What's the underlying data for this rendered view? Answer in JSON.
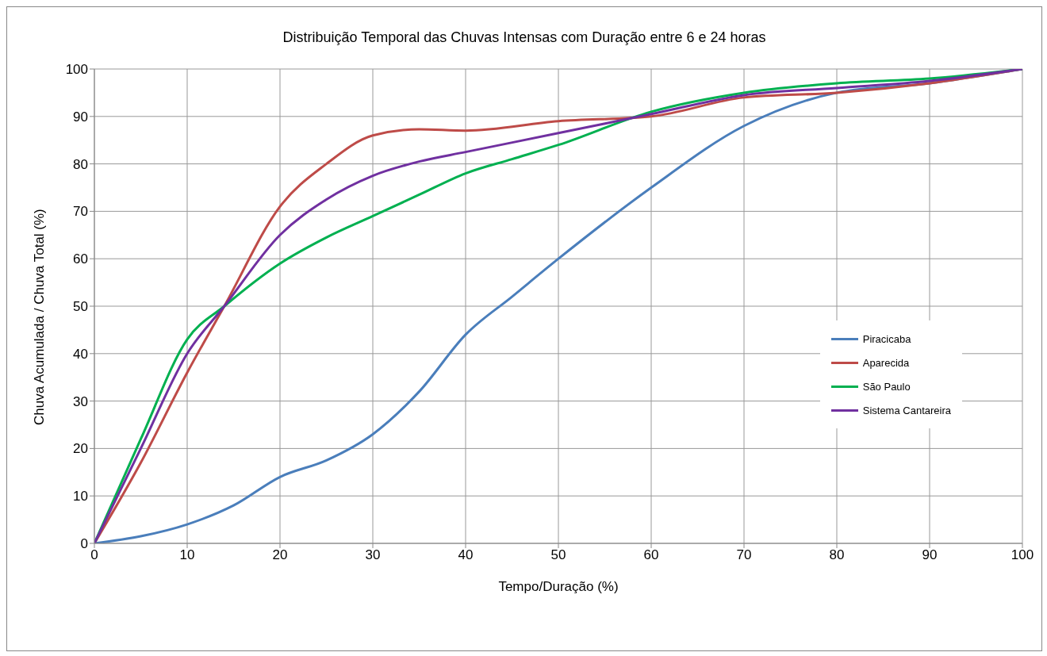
{
  "chart_data": {
    "type": "line",
    "title": "Distribuição Temporal das Chuvas Intensas com Duração entre 6 e 24 horas",
    "xlabel": "Tempo/Duração (%)",
    "ylabel": "Chuva Acumulada / Chuva Total (%)",
    "series": [
      {
        "name": "Piracicaba",
        "color": "#4a7ebb",
        "x": [
          0,
          5,
          10,
          15,
          20,
          25,
          30,
          35,
          40,
          45,
          50,
          60,
          70,
          80,
          90,
          100
        ],
        "values": [
          0,
          1.5,
          4,
          8,
          14,
          17.5,
          23,
          32,
          44,
          52,
          60,
          75,
          88,
          95,
          97,
          100
        ]
      },
      {
        "name": "Aparecida",
        "color": "#be4b48",
        "x": [
          0,
          5,
          10,
          14,
          20,
          25,
          30,
          35,
          40,
          50,
          60,
          70,
          80,
          90,
          100
        ],
        "values": [
          0,
          17,
          36,
          50,
          71,
          80,
          86,
          87.3,
          87,
          89,
          90,
          94,
          95,
          97,
          100
        ]
      },
      {
        "name": "São Paulo",
        "color": "#00b050",
        "x": [
          0,
          5,
          10,
          14,
          20,
          25,
          30,
          35,
          40,
          45,
          50,
          60,
          70,
          80,
          90,
          100
        ],
        "values": [
          0,
          22,
          43,
          50,
          59,
          64.5,
          69,
          73.5,
          78,
          81,
          84,
          91,
          95,
          97,
          98,
          100
        ]
      },
      {
        "name": "Sistema Cantareira",
        "color": "#7030a0",
        "x": [
          0,
          5,
          10,
          14,
          20,
          25,
          30,
          35,
          40,
          50,
          60,
          70,
          80,
          90,
          100
        ],
        "values": [
          0,
          20,
          40,
          50,
          65,
          72.5,
          77.5,
          80.5,
          82.5,
          86.5,
          90.5,
          94.5,
          96,
          97.5,
          100
        ]
      }
    ],
    "xlim": [
      0,
      100
    ],
    "xticks": [
      0,
      10,
      20,
      30,
      40,
      50,
      60,
      70,
      80,
      90,
      100
    ],
    "ylim": [
      0,
      100
    ],
    "yticks": [
      0,
      10,
      20,
      30,
      40,
      50,
      60,
      70,
      80,
      90,
      100
    ],
    "grid": true,
    "legend": "right",
    "marker": "none",
    "line_style": "solid"
  }
}
